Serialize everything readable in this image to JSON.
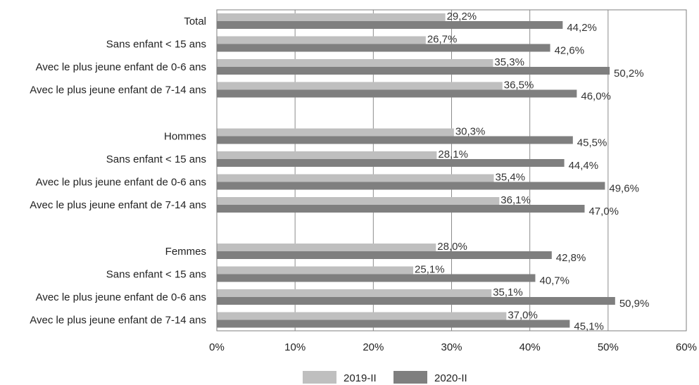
{
  "chart_data": {
    "type": "bar",
    "orientation": "horizontal",
    "categories": [
      "Total",
      "Sans enfant < 15 ans",
      "Avec le plus jeune enfant de 0-6 ans",
      "Avec le plus jeune enfant de 7-14 ans",
      "Hommes",
      "Sans enfant < 15 ans",
      "Avec le plus jeune enfant de 0-6 ans",
      "Avec le plus jeune enfant de 7-14 ans",
      "Femmes",
      "Sans enfant < 15 ans",
      "Avec le plus jeune enfant de 0-6 ans",
      "Avec le plus jeune enfant de 7-14 ans"
    ],
    "series": [
      {
        "name": "2019-II",
        "color": "#bfbfbf",
        "values": [
          29.2,
          26.7,
          35.3,
          36.5,
          30.3,
          28.1,
          35.4,
          36.1,
          28.0,
          25.1,
          35.1,
          37.0
        ],
        "labels": [
          "29,2%",
          "26,7%",
          "35,3%",
          "36,5%",
          "30,3%",
          "28,1%",
          "35,4%",
          "36,1%",
          "28,0%",
          "25,1%",
          "35,1%",
          "37,0%"
        ]
      },
      {
        "name": "2020-II",
        "color": "#7f7f7f",
        "values": [
          44.2,
          42.6,
          50.2,
          46.0,
          45.5,
          44.4,
          49.6,
          47.0,
          42.8,
          40.7,
          50.9,
          45.1
        ],
        "labels": [
          "44,2%",
          "42,6%",
          "50,2%",
          "46,0%",
          "45,5%",
          "44,4%",
          "49,6%",
          "47,0%",
          "42,8%",
          "40,7%",
          "50,9%",
          "45,1%"
        ]
      }
    ],
    "xlim": [
      0,
      60
    ],
    "xticks": [
      "0%",
      "10%",
      "20%",
      "30%",
      "40%",
      "50%",
      "60%"
    ],
    "grid": true,
    "legend_position": "bottom"
  }
}
